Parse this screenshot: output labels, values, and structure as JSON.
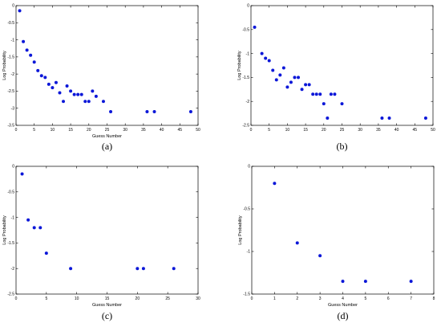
{
  "colors": {
    "point": "#0b17d8"
  },
  "chart_data": [
    {
      "type": "scatter",
      "panel": "a",
      "caption": "(a)",
      "xlabel": "Guess Number",
      "ylabel": "Log Probability",
      "xlim": [
        0,
        50
      ],
      "ylim": [
        -3.5,
        0
      ],
      "xticks": [
        0,
        5,
        10,
        15,
        20,
        25,
        30,
        35,
        40,
        45,
        50
      ],
      "yticks": [
        0,
        -0.5,
        -1,
        -1.5,
        -2,
        -2.5,
        -3,
        -3.5
      ],
      "xtick_labels": [
        "0",
        "5",
        "10",
        "15",
        "20",
        "25",
        "30",
        "35",
        "40",
        "45",
        "50"
      ],
      "ytick_labels": [
        "0",
        "-0.5",
        "-1",
        "-1.5",
        "-2",
        "-2.5",
        "-3",
        "-3.5"
      ],
      "x": [
        1,
        2,
        3,
        4,
        5,
        6,
        7,
        8,
        9,
        10,
        11,
        12,
        13,
        14,
        15,
        16,
        17,
        18,
        19,
        20,
        21,
        22,
        24,
        26,
        36,
        38,
        48
      ],
      "y": [
        -0.15,
        -1.05,
        -1.3,
        -1.45,
        -1.65,
        -1.9,
        -2.05,
        -2.1,
        -2.3,
        -2.4,
        -2.25,
        -2.55,
        -2.8,
        -2.35,
        -2.5,
        -2.6,
        -2.6,
        -2.6,
        -2.8,
        -2.8,
        -2.5,
        -2.65,
        -2.8,
        -3.1,
        -3.1,
        -3.1,
        -3.1
      ]
    },
    {
      "type": "scatter",
      "panel": "b",
      "caption": "(b)",
      "xlabel": "",
      "ylabel": "Log Probability",
      "xlim": [
        0,
        50
      ],
      "ylim": [
        -2.5,
        0
      ],
      "xticks": [
        0,
        5,
        10,
        15,
        20,
        25,
        30,
        35,
        40,
        45,
        50
      ],
      "yticks": [
        0,
        -0.5,
        -1,
        -1.5,
        -2,
        -2.5
      ],
      "xtick_labels": [
        "0",
        "5",
        "10",
        "15",
        "20",
        "25",
        "30",
        "35",
        "40",
        "45",
        "50"
      ],
      "ytick_labels": [
        "0",
        "-0.5",
        "-1",
        "-1.5",
        "-2",
        "-2.5"
      ],
      "x": [
        1,
        3,
        4,
        5,
        6,
        7,
        8,
        9,
        10,
        11,
        12,
        13,
        14,
        15,
        16,
        17,
        18,
        19,
        20,
        21,
        22,
        23,
        25,
        36,
        38,
        48
      ],
      "y": [
        -0.45,
        -1.0,
        -1.1,
        -1.15,
        -1.35,
        -1.55,
        -1.45,
        -1.3,
        -1.7,
        -1.6,
        -1.5,
        -1.5,
        -1.75,
        -1.65,
        -1.65,
        -1.85,
        -1.85,
        -1.85,
        -2.05,
        -2.35,
        -1.85,
        -1.85,
        -2.05,
        -2.35,
        -2.35,
        -2.35
      ]
    },
    {
      "type": "scatter",
      "panel": "c",
      "caption": "(c)",
      "xlabel": "Guess Number",
      "ylabel": "Log Probability",
      "xlim": [
        0,
        30
      ],
      "ylim": [
        -2.5,
        0
      ],
      "xticks": [
        0,
        5,
        10,
        15,
        20,
        25,
        30
      ],
      "yticks": [
        0,
        -0.5,
        -1,
        -1.5,
        -2,
        -2.5
      ],
      "xtick_labels": [
        "0",
        "5",
        "10",
        "15",
        "20",
        "25",
        "30"
      ],
      "ytick_labels": [
        "0",
        "-0.5",
        "-1",
        "-1.5",
        "-2",
        "-2.5"
      ],
      "x": [
        1,
        2,
        3,
        4,
        5,
        9,
        20,
        21,
        26
      ],
      "y": [
        -0.15,
        -1.05,
        -1.2,
        -1.2,
        -1.7,
        -2.0,
        -2.0,
        -2.0,
        -2.0
      ]
    },
    {
      "type": "scatter",
      "panel": "d",
      "caption": "(d)",
      "xlabel": "Guess Number",
      "ylabel": "Log Probability",
      "xlim": [
        0,
        8
      ],
      "ylim": [
        -1.5,
        0
      ],
      "xticks": [
        0,
        1,
        2,
        3,
        4,
        5,
        6,
        7,
        8
      ],
      "yticks": [
        0,
        -0.5,
        -1,
        -1.5
      ],
      "xtick_labels": [
        "0",
        "1",
        "2",
        "3",
        "4",
        "5",
        "6",
        "7",
        "8"
      ],
      "ytick_labels": [
        "0",
        "-0.5",
        "-1",
        "-1.5"
      ],
      "x": [
        1,
        2,
        3,
        4,
        5,
        7
      ],
      "y": [
        -0.2,
        -0.9,
        -1.05,
        -1.35,
        -1.35,
        -1.35
      ]
    }
  ]
}
